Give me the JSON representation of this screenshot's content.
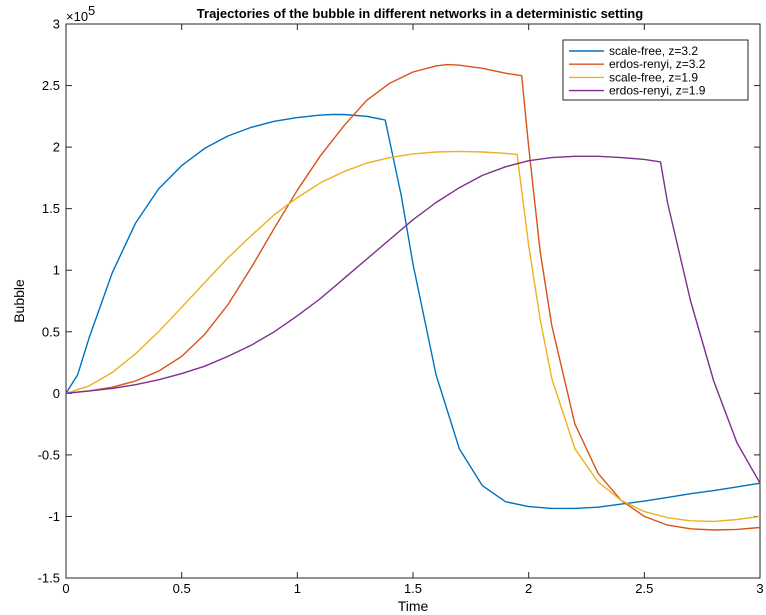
{
  "chart_data": {
    "type": "line",
    "title": "Trajectories of the bubble in different networks in a deterministic setting",
    "xlabel": "Time",
    "ylabel": "Bubble",
    "y_multiplier_label": "×10",
    "y_multiplier_exponent": "5",
    "xlim": [
      0,
      3
    ],
    "ylim": [
      -1.5,
      3
    ],
    "x_ticks": [
      0,
      0.5,
      1,
      1.5,
      2,
      2.5,
      3
    ],
    "x_tick_labels": [
      "0",
      "0.5",
      "1",
      "1.5",
      "2",
      "2.5",
      "3"
    ],
    "y_ticks": [
      -1.5,
      -1,
      -0.5,
      0,
      0.5,
      1,
      1.5,
      2,
      2.5,
      3
    ],
    "y_tick_labels": [
      "-1.5",
      "-1",
      "-0.5",
      "0",
      "0.5",
      "1",
      "1.5",
      "2",
      "2.5",
      "3"
    ],
    "legend_position": "top-right",
    "grid": false,
    "series": [
      {
        "name": "scale-free, z=3.2",
        "color": "#0072BD",
        "x": [
          0,
          0.05,
          0.1,
          0.2,
          0.3,
          0.4,
          0.5,
          0.6,
          0.7,
          0.8,
          0.9,
          1.0,
          1.1,
          1.15,
          1.2,
          1.3,
          1.38,
          1.45,
          1.5,
          1.6,
          1.7,
          1.8,
          1.9,
          2.0,
          2.1,
          2.2,
          2.3,
          2.4,
          2.5,
          2.6,
          2.7,
          2.8,
          2.9,
          3.0
        ],
        "y": [
          0,
          0.15,
          0.45,
          0.98,
          1.38,
          1.66,
          1.85,
          1.99,
          2.09,
          2.16,
          2.21,
          2.24,
          2.26,
          2.265,
          2.265,
          2.25,
          2.22,
          1.6,
          1.05,
          0.15,
          -0.45,
          -0.75,
          -0.88,
          -0.92,
          -0.935,
          -0.935,
          -0.925,
          -0.9,
          -0.875,
          -0.845,
          -0.815,
          -0.79,
          -0.76,
          -0.73
        ]
      },
      {
        "name": "erdos-renyi, z=3.2",
        "color": "#D95319",
        "x": [
          0,
          0.1,
          0.2,
          0.3,
          0.4,
          0.5,
          0.6,
          0.7,
          0.8,
          0.9,
          1.0,
          1.1,
          1.2,
          1.3,
          1.4,
          1.5,
          1.6,
          1.65,
          1.7,
          1.8,
          1.9,
          1.97,
          2.0,
          2.05,
          2.1,
          2.2,
          2.3,
          2.4,
          2.5,
          2.6,
          2.7,
          2.8,
          2.9,
          3.0
        ],
        "y": [
          0,
          0.02,
          0.05,
          0.1,
          0.18,
          0.3,
          0.48,
          0.72,
          1.02,
          1.34,
          1.65,
          1.93,
          2.17,
          2.38,
          2.52,
          2.61,
          2.66,
          2.67,
          2.665,
          2.64,
          2.6,
          2.58,
          2.0,
          1.15,
          0.55,
          -0.25,
          -0.65,
          -0.87,
          -1.0,
          -1.07,
          -1.1,
          -1.11,
          -1.105,
          -1.09
        ]
      },
      {
        "name": "scale-free, z=1.9",
        "color": "#EDB120",
        "x": [
          0,
          0.1,
          0.2,
          0.3,
          0.4,
          0.5,
          0.6,
          0.7,
          0.8,
          0.9,
          1.0,
          1.1,
          1.2,
          1.3,
          1.4,
          1.5,
          1.6,
          1.7,
          1.8,
          1.9,
          1.95,
          2.0,
          2.05,
          2.1,
          2.2,
          2.3,
          2.4,
          2.5,
          2.6,
          2.7,
          2.8,
          2.9,
          3.0
        ],
        "y": [
          0,
          0.06,
          0.17,
          0.32,
          0.5,
          0.7,
          0.9,
          1.1,
          1.28,
          1.45,
          1.59,
          1.71,
          1.8,
          1.87,
          1.915,
          1.945,
          1.96,
          1.965,
          1.96,
          1.95,
          1.94,
          1.2,
          0.6,
          0.12,
          -0.45,
          -0.72,
          -0.87,
          -0.96,
          -1.01,
          -1.035,
          -1.04,
          -1.025,
          -1.0
        ]
      },
      {
        "name": "erdos-renyi, z=1.9",
        "color": "#7E2F8E",
        "x": [
          0,
          0.1,
          0.2,
          0.3,
          0.4,
          0.5,
          0.6,
          0.7,
          0.8,
          0.9,
          1.0,
          1.1,
          1.2,
          1.3,
          1.4,
          1.5,
          1.6,
          1.7,
          1.8,
          1.9,
          2.0,
          2.1,
          2.2,
          2.3,
          2.4,
          2.5,
          2.57,
          2.6,
          2.7,
          2.8,
          2.9,
          3.0
        ],
        "y": [
          0,
          0.02,
          0.04,
          0.07,
          0.11,
          0.16,
          0.22,
          0.3,
          0.39,
          0.5,
          0.63,
          0.77,
          0.93,
          1.09,
          1.25,
          1.41,
          1.55,
          1.67,
          1.77,
          1.84,
          1.89,
          1.915,
          1.925,
          1.925,
          1.915,
          1.9,
          1.88,
          1.55,
          0.75,
          0.1,
          -0.4,
          -0.73
        ]
      }
    ]
  }
}
